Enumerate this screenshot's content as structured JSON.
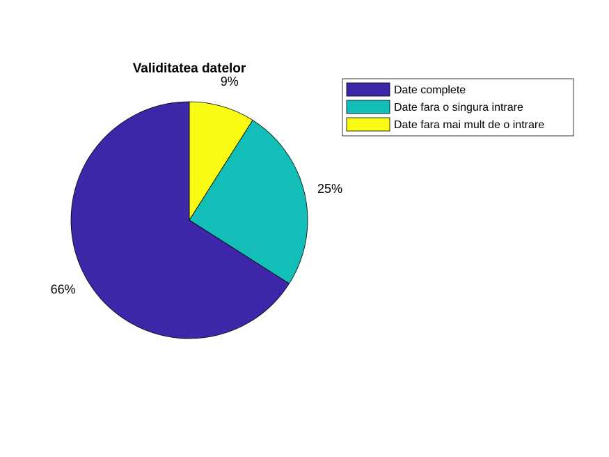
{
  "chart_data": {
    "type": "pie",
    "title": "Validitatea datelor",
    "slices": [
      {
        "label": "Date complete",
        "value": 66,
        "value_label": "66%",
        "color": "#3e26a8"
      },
      {
        "label": "Date fara o singura intrare",
        "value": 25,
        "value_label": "25%",
        "color": "#13beb8"
      },
      {
        "label": "Date fara mai mult de o intrare",
        "value": 9,
        "value_label": "9%",
        "color": "#f9fb14"
      }
    ],
    "legend_position": "top-right",
    "start_angle": "12 o'clock",
    "direction": "counter-clockwise"
  }
}
